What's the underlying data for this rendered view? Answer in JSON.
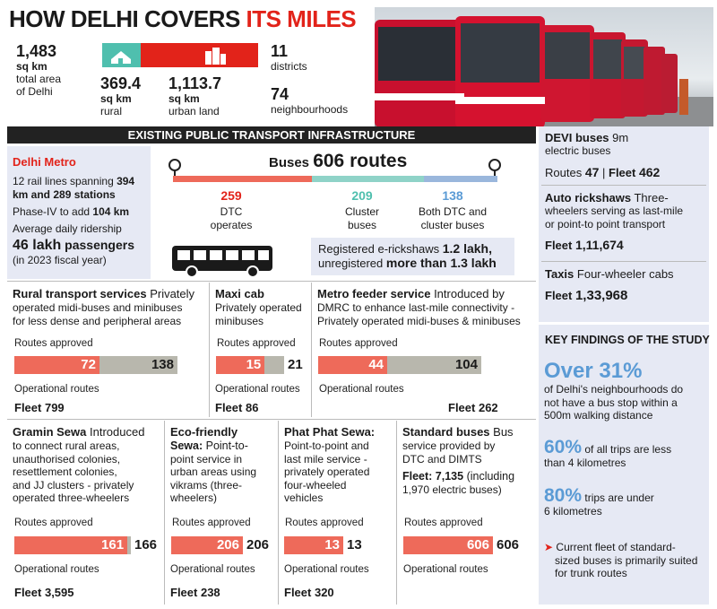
{
  "title": {
    "part1": "HOW DELHI COVERS ",
    "part2": "ITS MILES"
  },
  "area": {
    "total_value": "1,483",
    "total_unit": "sq km",
    "total_label1": "total area",
    "total_label2": "of Delhi",
    "rural_value": "369.4",
    "rural_unit": "sq km",
    "rural_label": "rural",
    "urban_value": "1,113.7",
    "urban_unit": "sq km",
    "urban_label": "urban land",
    "districts_value": "11",
    "districts_label": "districts",
    "neigh_value": "74",
    "neigh_label": "neighbourhoods",
    "rural_fraction": 0.249
  },
  "banner": "EXISTING PUBLIC TRANSPORT INFRASTRUCTURE",
  "metro": {
    "title": "Delhi Metro",
    "line1a": "12 rail lines spanning ",
    "line1b": "394 km and 289 stations",
    "line2a": "Phase-IV to add ",
    "line2b": "104 km",
    "line3": "Average daily ridership",
    "line4": "46 lakh",
    "line4b": " passengers",
    "line5": "(in 2023 fiscal year)"
  },
  "buses": {
    "label": "Buses",
    "routes": "606 routes",
    "dtc_value": "259",
    "dtc_label1": "DTC",
    "dtc_label2": "operates",
    "cluster_value": "209",
    "cluster_label1": "Cluster",
    "cluster_label2": "buses",
    "both_value": "138",
    "both_label1": "Both DTC and",
    "both_label2": "cluster buses",
    "erick_line1a": "Registered e-rickshaws ",
    "erick_line1b": "1.2 lakh,",
    "erick_line2a": "unregistered ",
    "erick_line2b": "more than 1.3 lakh"
  },
  "devi": {
    "title": "DEVI buses",
    "sub1": " 9m",
    "sub2": "electric buses",
    "routes_label": "Routes ",
    "routes": "47",
    "sep": " | ",
    "fleet_label": "Fleet ",
    "fleet": "462"
  },
  "auto": {
    "title": "Auto rickshaws",
    "sub1": " Three-",
    "sub2": "wheelers serving as last-mile",
    "sub3": "or point-to point transport",
    "fleet_label": "Fleet ",
    "fleet": "1,11,674"
  },
  "taxis": {
    "title": "Taxis",
    "sub": " Four-wheeler cabs",
    "fleet_label": "Fleet ",
    "fleet": "1,33,968"
  },
  "common": {
    "routes_approved": "Routes approved",
    "operational_routes": "Operational routes"
  },
  "services": {
    "rural": {
      "title": "Rural transport services",
      "d1": " Privately",
      "d2": "operated midi-buses and minibuses",
      "d3": "for less dense and peripheral areas",
      "operational": 72,
      "approved": 138,
      "fleet_label": "Fleet ",
      "fleet": "799"
    },
    "maxi": {
      "title": "Maxi cab",
      "d1": "Privately operated",
      "d2": "minibuses",
      "operational": 15,
      "approved": 21,
      "fleet_label": "Fleet ",
      "fleet": "86"
    },
    "feeder": {
      "title": "Metro feeder service",
      "d1": " Introduced by",
      "d2": "DMRC to enhance last-mile connectivity -",
      "d3": "Privately operated midi-buses & minibuses",
      "operational": 44,
      "approved": 104,
      "fleet_label": "Fleet ",
      "fleet": "262"
    },
    "gramin": {
      "title": "Gramin Sewa",
      "d1": " Introduced",
      "d2": "to connect rural areas,",
      "d3": "unauthorised colonies,",
      "d4": "resettlement colonies,",
      "d5": "and JJ clusters - privately",
      "d6": "operated three-wheelers",
      "operational": 161,
      "approved": 166,
      "fleet_label": "Fleet ",
      "fleet": "3,595"
    },
    "eco": {
      "title1": "Eco-friendly",
      "title2": "Sewa:",
      "d1": " Point-to-",
      "d2": "point service in",
      "d3": "urban areas using",
      "d4": "vikrams (three-",
      "d5": "wheelers)",
      "operational": 206,
      "approved": 206,
      "fleet_label": "Fleet ",
      "fleet": "238"
    },
    "phat": {
      "title": "Phat Phat Sewa:",
      "d1": "Point-to-point and",
      "d2": "last mile service -",
      "d3": "privately operated",
      "d4": "four-wheeled",
      "d5": "vehicles",
      "operational": 13,
      "approved": 13,
      "fleet_label": "Fleet ",
      "fleet": "320"
    },
    "standard": {
      "title": "Standard buses",
      "d1": " Bus",
      "d2": "service provided by",
      "d3": "DTC and DIMTS",
      "f1a": "Fleet: 7,135",
      "f1b": " (including",
      "f2": "1,970 electric buses)",
      "operational": 606,
      "approved": 606
    }
  },
  "findings": {
    "title": "KEY FINDINGS OF THE STUDY",
    "f1_big": "Over 31%",
    "f1_t1": "of Delhi's neighbourhoods do",
    "f1_t2": "not have a bus stop within a",
    "f1_t3": "500m walking distance",
    "f2_big": "60%",
    "f2_t1": " of all trips are less",
    "f2_t2": "than 4 kilometres",
    "f3_big": "80%",
    "f3_t1": " trips are under",
    "f3_t2": "6 kilometres",
    "f4_arrow": "➤",
    "f4_t1": " Current fleet of standard-",
    "f4_t2": "sized buses is primarily suited",
    "f4_t3": "for trunk routes"
  },
  "colors": {
    "red": "#e2231a",
    "bar_red": "#ee6a5a",
    "bar_grey": "#b8b7ad",
    "teal": "#4fbfae",
    "blue": "#5b9bd5",
    "panel": "#e6e9f4"
  }
}
